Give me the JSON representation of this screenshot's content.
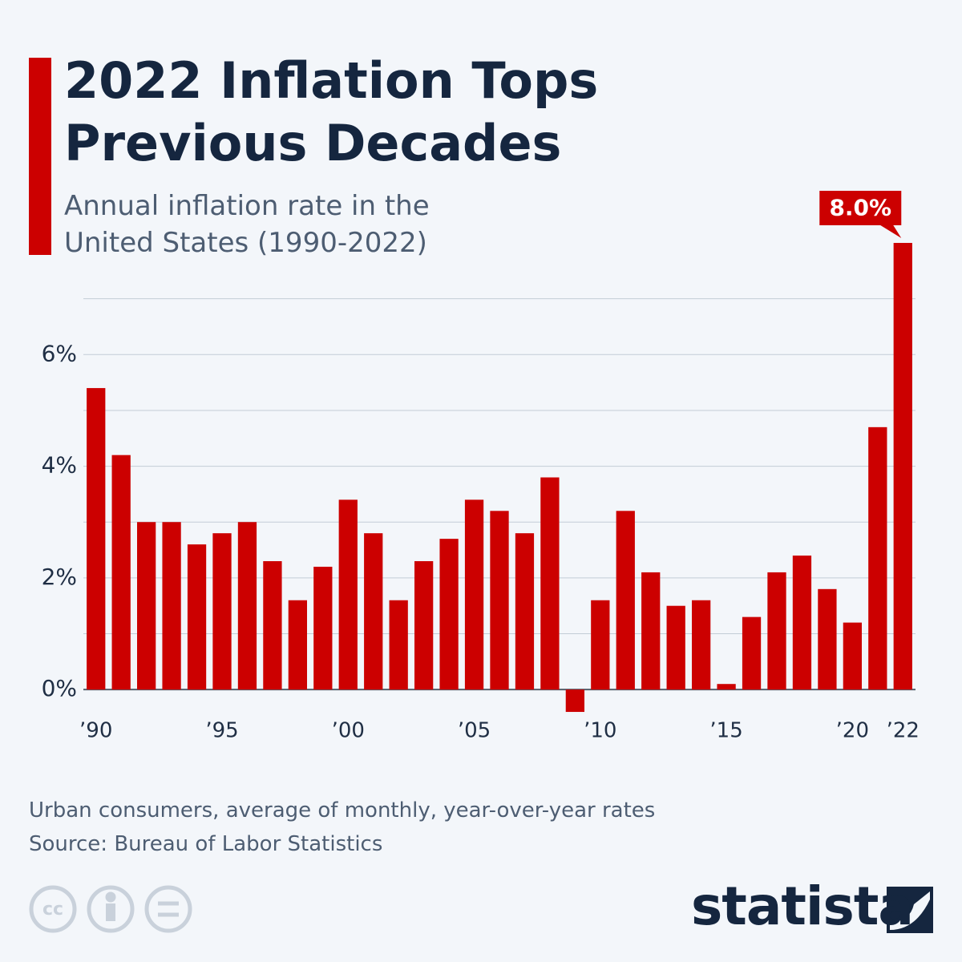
{
  "chart_data": {
    "type": "bar",
    "title": "2022 Inflation Tops Previous Decades",
    "subtitle": "Annual inflation rate in the United States (1990-2022)",
    "categories": [
      "’90",
      null,
      null,
      null,
      null,
      "’95",
      null,
      null,
      null,
      null,
      "’00",
      null,
      null,
      null,
      null,
      "’05",
      null,
      null,
      null,
      null,
      "’10",
      null,
      null,
      null,
      null,
      "’15",
      null,
      null,
      null,
      null,
      "’20",
      null,
      "’22"
    ],
    "values": [
      5.4,
      4.2,
      3.0,
      3.0,
      2.6,
      2.8,
      3.0,
      2.3,
      1.6,
      2.2,
      3.4,
      2.8,
      1.6,
      2.3,
      2.7,
      3.4,
      3.2,
      2.8,
      3.8,
      -0.4,
      1.6,
      3.2,
      2.1,
      1.5,
      1.6,
      0.1,
      1.3,
      2.1,
      2.4,
      1.8,
      1.2,
      4.7,
      8.0
    ],
    "value_labels": [
      null,
      null,
      null,
      null,
      null,
      null,
      null,
      null,
      null,
      null,
      null,
      null,
      null,
      null,
      null,
      null,
      null,
      null,
      null,
      null,
      null,
      null,
      null,
      null,
      null,
      null,
      null,
      null,
      null,
      null,
      null,
      null,
      "8.0%"
    ],
    "color": "#cc0000",
    "ylim": [
      -0.5,
      8.0
    ],
    "yticks": [
      {
        "value": 0,
        "label": "0%"
      },
      {
        "value": 2,
        "label": "2%"
      },
      {
        "value": 4,
        "label": "4%"
      },
      {
        "value": 6,
        "label": "6%"
      }
    ],
    "minor_yticks": [
      1,
      3,
      5,
      7
    ],
    "grid": true,
    "footnote": "Urban consumers, average of monthly, year-over-year rates",
    "source": "Source: Bureau of Labor Statistics",
    "logo": "statista"
  }
}
